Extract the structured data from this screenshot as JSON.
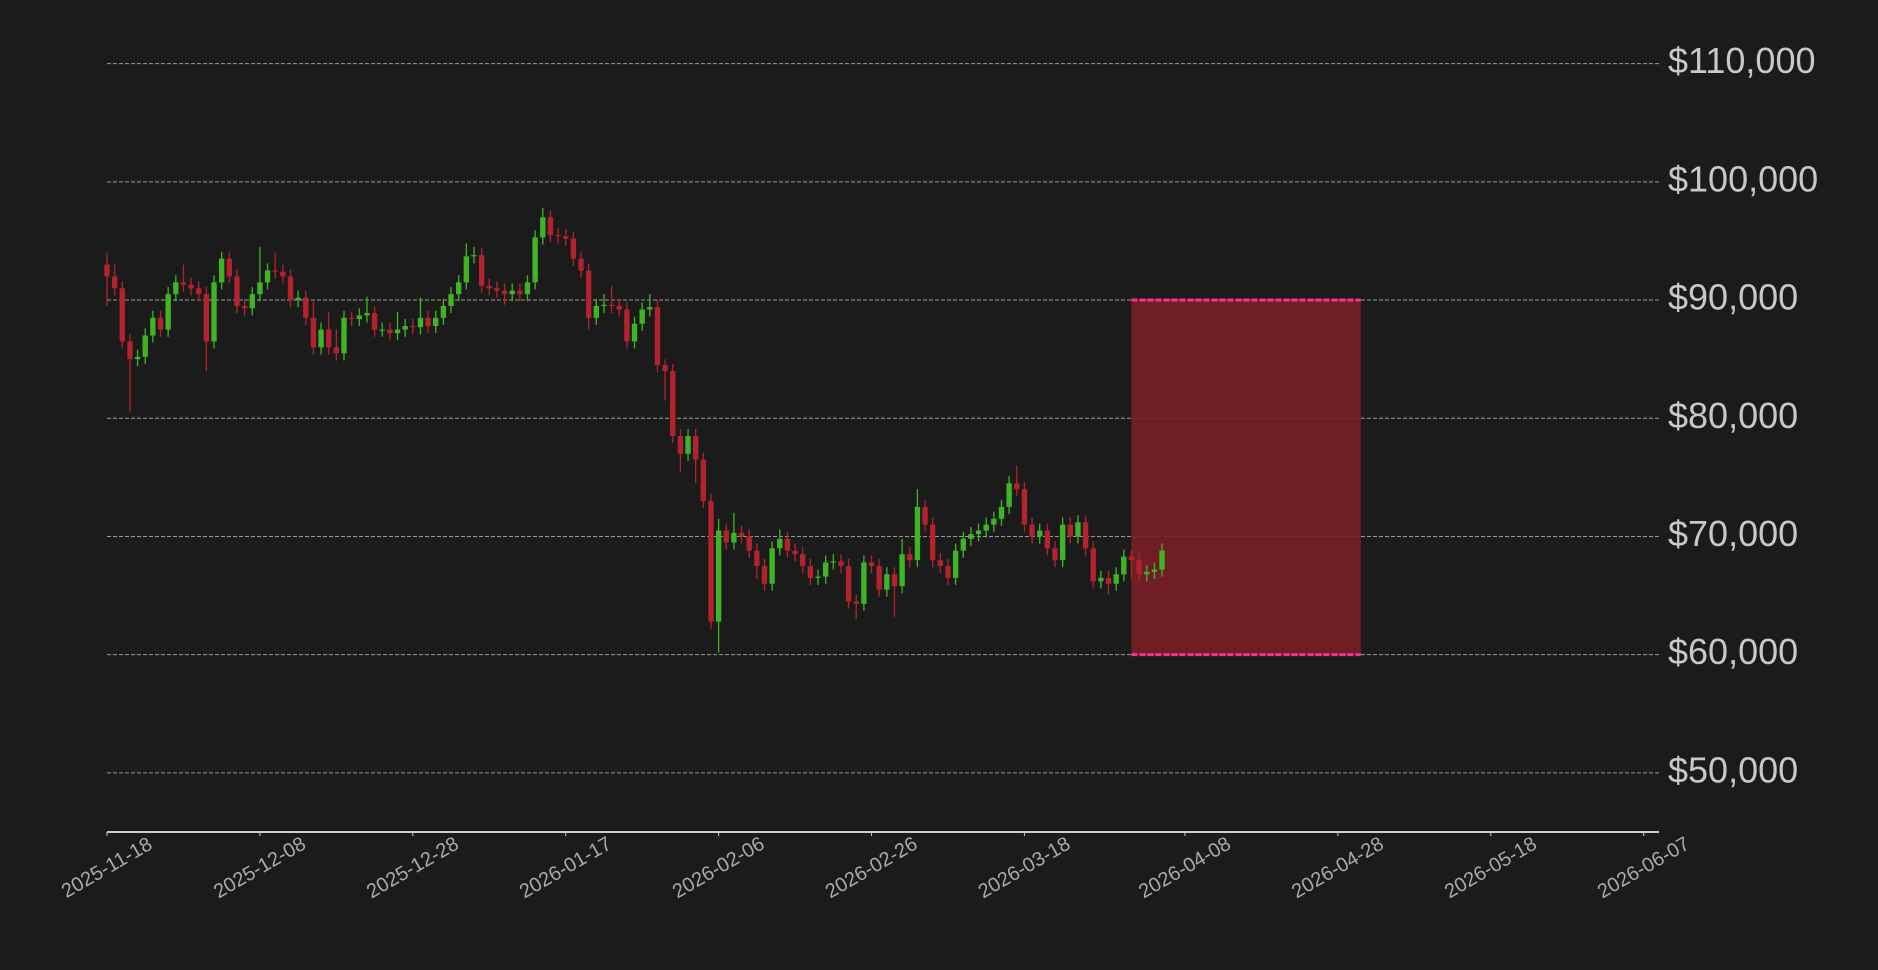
{
  "chart_data": {
    "type": "candlestick",
    "x": [
      "2025-11-18",
      "2025-11-19",
      "2025-11-20",
      "2025-11-21",
      "2025-11-22",
      "2025-11-23",
      "2025-11-24",
      "2025-11-25",
      "2025-11-26",
      "2025-11-27",
      "2025-11-28",
      "2025-11-29",
      "2025-11-30",
      "2025-12-01",
      "2025-12-02",
      "2025-12-03",
      "2025-12-04",
      "2025-12-05",
      "2025-12-06",
      "2025-12-07",
      "2025-12-08",
      "2025-12-09",
      "2025-12-10",
      "2025-12-11",
      "2025-12-12",
      "2025-12-13",
      "2025-12-14",
      "2025-12-15",
      "2025-12-16",
      "2025-12-17",
      "2025-12-18",
      "2025-12-19",
      "2025-12-20",
      "2025-12-21",
      "2025-12-22",
      "2025-12-23",
      "2025-12-24",
      "2025-12-25",
      "2025-12-26",
      "2025-12-27",
      "2025-12-28",
      "2025-12-29",
      "2025-12-30",
      "2025-12-31",
      "2026-01-01",
      "2026-01-02",
      "2026-01-03",
      "2026-01-04",
      "2026-01-05",
      "2026-01-06",
      "2026-01-07",
      "2026-01-08",
      "2026-01-09",
      "2026-01-10",
      "2026-01-11",
      "2026-01-12",
      "2026-01-13",
      "2026-01-14",
      "2026-01-15",
      "2026-01-16",
      "2026-01-17",
      "2026-01-18",
      "2026-01-19",
      "2026-01-20",
      "2026-01-21",
      "2026-01-22",
      "2026-01-23",
      "2026-01-24",
      "2026-01-25",
      "2026-01-26",
      "2026-01-27",
      "2026-01-28",
      "2026-01-29",
      "2026-01-30",
      "2026-01-31",
      "2026-02-01",
      "2026-02-02",
      "2026-02-03",
      "2026-02-04",
      "2026-02-05",
      "2026-02-06",
      "2026-02-07",
      "2026-02-08",
      "2026-02-09",
      "2026-02-10",
      "2026-02-11",
      "2026-02-12",
      "2026-02-13",
      "2026-02-14",
      "2026-02-15",
      "2026-02-16",
      "2026-02-17",
      "2026-02-18",
      "2026-02-19",
      "2026-02-20",
      "2026-02-21",
      "2026-02-22",
      "2026-02-23",
      "2026-02-24",
      "2026-02-25",
      "2026-02-26",
      "2026-02-27",
      "2026-02-28",
      "2026-03-01",
      "2026-03-02",
      "2026-03-03",
      "2026-03-04",
      "2026-03-05",
      "2026-03-06",
      "2026-03-07",
      "2026-03-08",
      "2026-03-09",
      "2026-03-10",
      "2026-03-11",
      "2026-03-12",
      "2026-03-13",
      "2026-03-14",
      "2026-03-15",
      "2026-03-16",
      "2026-03-17",
      "2026-03-18",
      "2026-03-19",
      "2026-03-20",
      "2026-03-21",
      "2026-03-22",
      "2026-03-23",
      "2026-03-24",
      "2026-03-25",
      "2026-03-26",
      "2026-03-27",
      "2026-03-28",
      "2026-03-29",
      "2026-03-30",
      "2026-03-31",
      "2026-04-01",
      "2026-04-02",
      "2026-04-03",
      "2026-04-04",
      "2026-04-05"
    ],
    "open": [
      93000,
      92000,
      91000,
      86500,
      85000,
      85200,
      87000,
      88500,
      87500,
      90500,
      91500,
      91300,
      91000,
      90500,
      86500,
      91500,
      93500,
      92000,
      89500,
      89300,
      90500,
      91500,
      92500,
      92400,
      92000,
      90000,
      90200,
      88500,
      86000,
      87500,
      86000,
      85500,
      88500,
      88400,
      88700,
      88900,
      87500,
      87500,
      87200,
      87500,
      87800,
      87700,
      88500,
      87800,
      88500,
      89500,
      90500,
      91500,
      93700,
      93800,
      91200,
      91000,
      90800,
      90500,
      90800,
      90500,
      91500,
      95300,
      97000,
      95500,
      95400,
      95200,
      93500,
      92500,
      88500,
      89500,
      89600,
      89500,
      89200,
      86500,
      88000,
      89200,
      89400,
      84500,
      84000,
      78500,
      77000,
      78500,
      76500,
      73000,
      62800,
      70500,
      69500,
      70300,
      70000,
      68800,
      67500,
      66000,
      69000,
      69800,
      68800,
      68500,
      67500,
      66500,
      66600,
      67800,
      67900,
      67500,
      64500,
      64300,
      67800,
      67500,
      65500,
      66800,
      65800,
      68500,
      68000,
      72500,
      71000,
      68000,
      67500,
      66500,
      68800,
      69800,
      70200,
      70500,
      71000,
      71500,
      72500,
      74500,
      74000,
      71000,
      70000,
      70500,
      69000,
      68000,
      71000,
      70000,
      71200,
      69000,
      66200,
      66500,
      66000,
      66800,
      68300,
      68000,
      66800,
      67000,
      67200
    ],
    "high": [
      94000,
      93000,
      91600,
      87100,
      85800,
      87600,
      89100,
      89100,
      91100,
      92100,
      93000,
      91900,
      91600,
      91100,
      92100,
      94100,
      94100,
      92600,
      90100,
      91100,
      94500,
      93100,
      94000,
      93000,
      92600,
      90800,
      90800,
      90000,
      88100,
      89000,
      87500,
      89100,
      89000,
      89300,
      90300,
      89500,
      88100,
      88100,
      89000,
      88400,
      88400,
      90200,
      89100,
      89100,
      90100,
      91100,
      92100,
      94800,
      94500,
      94400,
      91800,
      91600,
      91400,
      91400,
      91400,
      92100,
      95900,
      97800,
      97600,
      96100,
      96000,
      95800,
      94100,
      93100,
      90100,
      90500,
      91200,
      90100,
      89800,
      88600,
      89800,
      90500,
      90000,
      85000,
      84600,
      79100,
      79100,
      79100,
      77100,
      73600,
      71500,
      71100,
      72000,
      70900,
      70600,
      69400,
      68100,
      69600,
      70600,
      70400,
      69400,
      69100,
      68100,
      67200,
      68400,
      68500,
      68500,
      68100,
      65100,
      68400,
      68400,
      68100,
      67400,
      67400,
      69800,
      69100,
      74000,
      73100,
      71600,
      68600,
      68100,
      69400,
      70400,
      70800,
      71100,
      71600,
      72100,
      73100,
      75100,
      76000,
      74600,
      71600,
      71100,
      71100,
      69600,
      71600,
      71600,
      71800,
      71800,
      69600,
      67100,
      67100,
      67400,
      68900,
      68900,
      68600,
      67600,
      67800,
      69400
    ],
    "low": [
      89500,
      90400,
      85900,
      80500,
      84400,
      84600,
      86400,
      86900,
      86900,
      89900,
      90700,
      90400,
      89900,
      84000,
      85900,
      90900,
      91400,
      88900,
      88700,
      88700,
      89900,
      90900,
      91800,
      91400,
      89400,
      89400,
      87900,
      85400,
      85400,
      85400,
      84900,
      84900,
      87800,
      87800,
      88100,
      86900,
      86900,
      86600,
      86600,
      86900,
      87100,
      87100,
      87200,
      87200,
      87900,
      88900,
      89900,
      90900,
      93100,
      90600,
      90400,
      90200,
      89600,
      89900,
      89900,
      89900,
      90900,
      94700,
      94900,
      94800,
      94600,
      92900,
      91900,
      87500,
      87900,
      88900,
      88900,
      88600,
      85900,
      85900,
      87400,
      88600,
      83900,
      81500,
      77900,
      75500,
      76400,
      74500,
      72400,
      62200,
      60200,
      68900,
      68900,
      69400,
      68200,
      66400,
      65400,
      65400,
      68400,
      68200,
      67900,
      66900,
      65900,
      65900,
      66000,
      67200,
      66900,
      63900,
      63000,
      63700,
      66900,
      64900,
      64900,
      63200,
      65200,
      67400,
      67400,
      70400,
      67400,
      66900,
      65900,
      65900,
      68200,
      69200,
      69600,
      69900,
      70400,
      70900,
      71900,
      73400,
      70400,
      69400,
      69400,
      68400,
      67400,
      67400,
      69400,
      69400,
      68400,
      65600,
      65600,
      65100,
      65400,
      66200,
      66400,
      66200,
      66200,
      66400,
      66600
    ],
    "close": [
      92000,
      91000,
      86500,
      85000,
      85200,
      87000,
      88500,
      87500,
      90500,
      91500,
      91300,
      91000,
      90500,
      86500,
      91500,
      93500,
      92000,
      89500,
      89300,
      90500,
      91500,
      92500,
      92400,
      92000,
      90000,
      90200,
      88500,
      86000,
      87500,
      86000,
      85500,
      88500,
      88400,
      88700,
      88900,
      87500,
      87500,
      87200,
      87500,
      87800,
      87700,
      88500,
      87800,
      88500,
      89500,
      90500,
      91500,
      93700,
      93800,
      91200,
      91000,
      90800,
      90500,
      90800,
      90500,
      91500,
      95300,
      97000,
      95500,
      95400,
      95200,
      93500,
      92500,
      88500,
      89500,
      89600,
      89500,
      89200,
      86500,
      88000,
      89200,
      89400,
      84500,
      84000,
      78500,
      77000,
      78500,
      76500,
      73000,
      62800,
      70500,
      69500,
      70300,
      70000,
      68800,
      67500,
      66000,
      69000,
      69800,
      68800,
      68500,
      67500,
      66500,
      66600,
      67800,
      67900,
      67500,
      64500,
      64300,
      67800,
      67500,
      65500,
      66800,
      65800,
      68500,
      68000,
      72500,
      71000,
      68000,
      67500,
      66500,
      68800,
      69800,
      70200,
      70500,
      71000,
      71500,
      72500,
      74500,
      74000,
      71000,
      70000,
      70500,
      69000,
      68000,
      71000,
      70000,
      71200,
      69000,
      66200,
      66500,
      66000,
      66800,
      68300,
      68000,
      66800,
      67000,
      67200,
      68800
    ],
    "up_color": "#3fb524",
    "down_color": "#b3232d",
    "xlim": [
      "2025-11-18",
      "2026-06-09"
    ],
    "xticks": [
      "2025-11-18",
      "2025-12-08",
      "2025-12-28",
      "2026-01-17",
      "2026-02-06",
      "2026-02-26",
      "2026-03-18",
      "2026-04-08",
      "2026-04-28",
      "2026-05-18",
      "2026-06-07"
    ],
    "ylim": [
      45000,
      112000
    ],
    "yticks": [
      {
        "value": 50000,
        "label": "$50,000"
      },
      {
        "value": 60000,
        "label": "$60,000"
      },
      {
        "value": 70000,
        "label": "$70,000"
      },
      {
        "value": 80000,
        "label": "$80,000"
      },
      {
        "value": 90000,
        "label": "$90,000"
      },
      {
        "value": 100000,
        "label": "$100,000"
      },
      {
        "value": 110000,
        "label": "$110,000"
      }
    ],
    "grid": true,
    "zone": {
      "x": [
        "2026-04-01",
        "2026-05-01"
      ],
      "y": [
        60000,
        90000
      ],
      "color": "#7a1f27",
      "edge_color": "#ff2e8f"
    }
  }
}
